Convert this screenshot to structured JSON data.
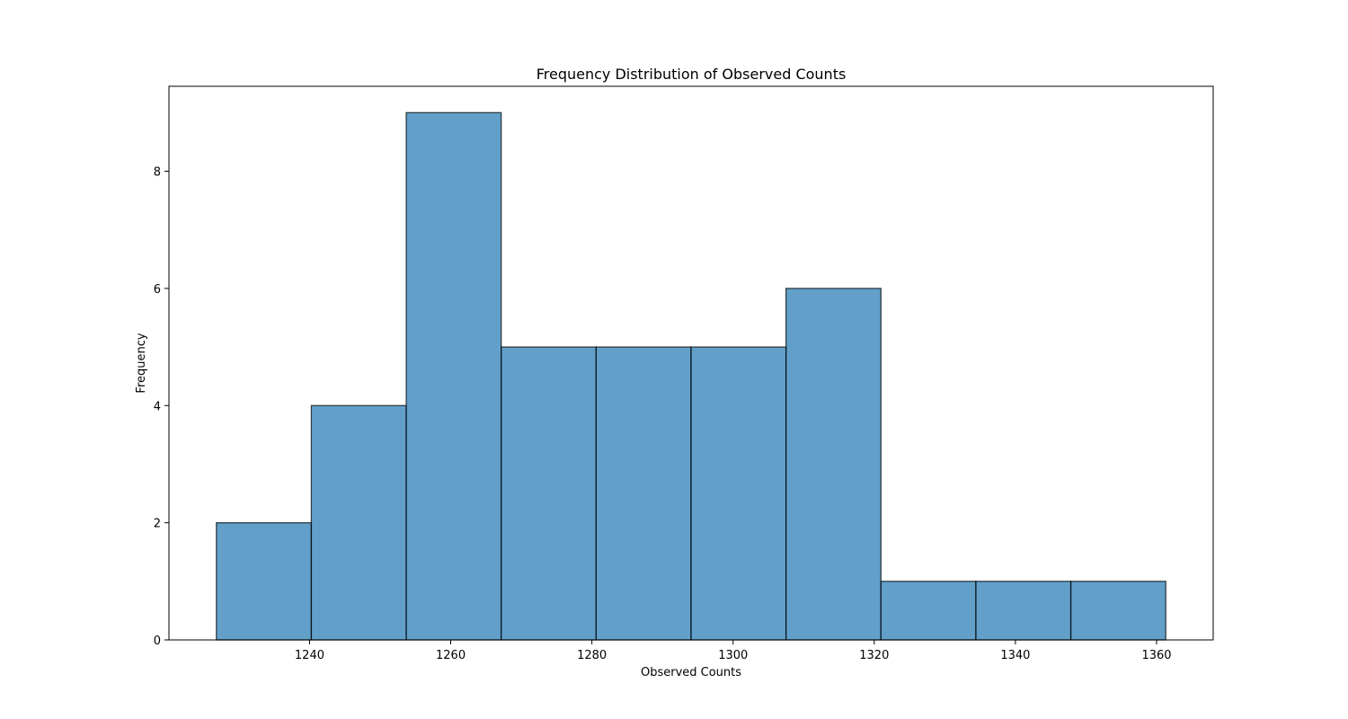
{
  "chart_data": {
    "type": "bar",
    "title": "Frequency Distribution of Observed Counts",
    "xlabel": "Observed Counts",
    "ylabel": "Frequency",
    "bin_edges": [
      1226.8,
      1240.25,
      1253.7,
      1267.15,
      1280.6,
      1294.05,
      1307.5,
      1320.95,
      1334.4,
      1347.85,
      1361.3
    ],
    "values": [
      2,
      4,
      9,
      5,
      5,
      5,
      6,
      1,
      1,
      1
    ],
    "xlim": [
      1220.08,
      1368.02
    ],
    "ylim": [
      0,
      9.45
    ],
    "xticks": [
      1240,
      1260,
      1280,
      1300,
      1320,
      1340,
      1360
    ],
    "yticks": [
      0,
      2,
      4,
      6,
      8
    ],
    "grid": false,
    "bar_color": "#1f77b4",
    "edge_color": "#000000"
  }
}
